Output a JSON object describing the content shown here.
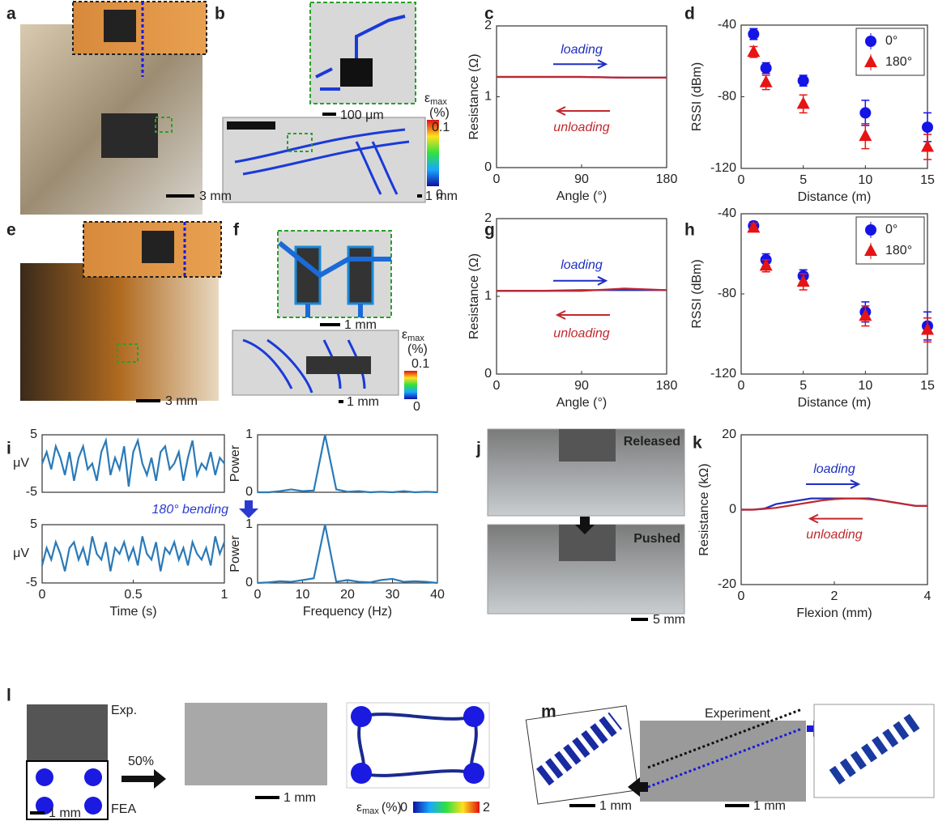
{
  "chart_data": [
    {
      "type": "line",
      "xlabel": "Angle (°)",
      "ylabel": "Resistance (Ω)",
      "xlim": [
        0,
        180
      ],
      "xticks": [
        0,
        90,
        180
      ],
      "ylim": [
        0,
        2
      ],
      "yticks": [
        0,
        1,
        2
      ],
      "series": [
        {
          "name": "loading",
          "color": "#1f2fbf",
          "x": [
            0,
            45,
            90,
            135,
            180
          ],
          "values": [
            1.28,
            1.28,
            1.28,
            1.27,
            1.27
          ]
        },
        {
          "name": "unloading",
          "color": "#c0282d",
          "x": [
            0,
            45,
            90,
            135,
            180
          ],
          "values": [
            1.28,
            1.28,
            1.28,
            1.27,
            1.27
          ]
        }
      ]
    },
    {
      "type": "scatter",
      "xlabel": "Distance (m)",
      "ylabel": "RSSI (dBm)",
      "xlim": [
        0,
        15
      ],
      "xticks": [
        0,
        5,
        10,
        15
      ],
      "ylim": [
        -120,
        -40
      ],
      "yticks": [
        -120,
        -80,
        -40
      ],
      "legend": "upper right",
      "series": [
        {
          "name": "0°",
          "color": "#1414e6",
          "marker": "circle",
          "x": [
            1,
            2,
            5,
            10,
            15
          ],
          "values": [
            -45,
            -64,
            -71,
            -89,
            -97
          ],
          "errors": [
            3,
            3,
            3,
            7,
            8
          ]
        },
        {
          "name": "180°",
          "color": "#e61414",
          "marker": "triangle",
          "x": [
            1,
            2,
            5,
            10,
            15
          ],
          "values": [
            -55,
            -72,
            -84,
            -102,
            -108
          ],
          "errors": [
            3,
            4,
            5,
            7,
            7
          ]
        }
      ]
    },
    {
      "type": "line",
      "xlabel": "Angle (°)",
      "ylabel": "Resistance (Ω)",
      "xlim": [
        0,
        180
      ],
      "xticks": [
        0,
        90,
        180
      ],
      "ylim": [
        0,
        2
      ],
      "yticks": [
        0,
        1,
        2
      ],
      "series": [
        {
          "name": "loading",
          "color": "#1f2fbf",
          "x": [
            0,
            45,
            90,
            135,
            180
          ],
          "values": [
            1.07,
            1.07,
            1.08,
            1.08,
            1.08
          ]
        },
        {
          "name": "unloading",
          "color": "#c0282d",
          "x": [
            0,
            45,
            90,
            135,
            180
          ],
          "values": [
            1.07,
            1.07,
            1.07,
            1.1,
            1.08
          ]
        }
      ]
    },
    {
      "type": "scatter",
      "xlabel": "Distance (m)",
      "ylabel": "RSSI (dBm)",
      "xlim": [
        0,
        15
      ],
      "xticks": [
        0,
        5,
        10,
        15
      ],
      "ylim": [
        -120,
        -40
      ],
      "yticks": [
        -120,
        -80,
        -40
      ],
      "legend": "upper right",
      "series": [
        {
          "name": "0°",
          "color": "#1414e6",
          "marker": "circle",
          "x": [
            1,
            2,
            5,
            10,
            15
          ],
          "values": [
            -46,
            -63,
            -71,
            -89,
            -96
          ],
          "errors": [
            2,
            3,
            3,
            5,
            7
          ]
        },
        {
          "name": "180°",
          "color": "#e61414",
          "marker": "triangle",
          "x": [
            1,
            2,
            5,
            10,
            15
          ],
          "values": [
            -47,
            -66,
            -74,
            -91,
            -98
          ],
          "errors": [
            2,
            3,
            4,
            5,
            6
          ]
        }
      ]
    },
    {
      "type": "line",
      "ylabel": "μV",
      "xlim": [
        0,
        1
      ],
      "ylim": [
        -5,
        5
      ],
      "yticks": [
        -5,
        5
      ],
      "color": "#2a7ab8",
      "x": [
        0,
        0.025,
        0.05,
        0.075,
        0.1,
        0.125,
        0.15,
        0.175,
        0.2,
        0.225,
        0.25,
        0.275,
        0.3,
        0.325,
        0.35,
        0.375,
        0.4,
        0.425,
        0.45,
        0.475,
        0.5,
        0.525,
        0.55,
        0.575,
        0.6,
        0.625,
        0.65,
        0.675,
        0.7,
        0.725,
        0.75,
        0.775,
        0.8,
        0.825,
        0.85,
        0.875,
        0.9,
        0.925,
        0.95,
        0.975,
        1
      ],
      "values": [
        0,
        2,
        -1,
        3,
        1,
        -2,
        2,
        -3,
        1,
        3,
        -1,
        0,
        -3,
        2,
        4,
        -2,
        1,
        -1,
        3,
        -4,
        2,
        4,
        0,
        -2,
        1,
        -3,
        2,
        3,
        -1,
        0,
        2,
        -3,
        1,
        4,
        -2,
        0,
        -1,
        2,
        -2,
        1,
        0
      ]
    },
    {
      "type": "line",
      "ylabel": "Power",
      "xlim": [
        0,
        40
      ],
      "ylim": [
        0,
        1
      ],
      "yticks": [
        0,
        1
      ],
      "color": "#2a7ab8",
      "x": [
        0,
        2.5,
        5,
        7.5,
        10,
        12.5,
        15,
        17.5,
        20,
        22.5,
        25,
        27.5,
        30,
        32.5,
        35,
        37.5,
        40
      ],
      "values": [
        0,
        0,
        0.02,
        0.05,
        0.02,
        0.03,
        1,
        0.05,
        0.01,
        0.02,
        0,
        0.01,
        0,
        0.02,
        0,
        0.01,
        0
      ]
    },
    {
      "type": "line",
      "xlabel": "Time (s)",
      "ylabel": "μV",
      "xlim": [
        0,
        1
      ],
      "xticks": [
        0,
        0.5,
        1
      ],
      "ylim": [
        -5,
        5
      ],
      "yticks": [
        -5,
        5
      ],
      "color": "#2a7ab8",
      "x": [
        0,
        0.025,
        0.05,
        0.075,
        0.1,
        0.125,
        0.15,
        0.175,
        0.2,
        0.225,
        0.25,
        0.275,
        0.3,
        0.325,
        0.35,
        0.375,
        0.4,
        0.425,
        0.45,
        0.475,
        0.5,
        0.525,
        0.55,
        0.575,
        0.6,
        0.625,
        0.65,
        0.675,
        0.7,
        0.725,
        0.75,
        0.775,
        0.8,
        0.825,
        0.85,
        0.875,
        0.9,
        0.925,
        0.95,
        0.975,
        1
      ],
      "values": [
        -2,
        1,
        -1,
        2,
        0,
        -3,
        1,
        2,
        -1,
        1,
        -2,
        3,
        0,
        -1,
        2,
        -3,
        1,
        0,
        2,
        -1,
        1,
        -2,
        3,
        0,
        -1,
        2,
        -3,
        1,
        0,
        2,
        -1,
        1,
        -2,
        2,
        0,
        -1,
        1,
        -2,
        3,
        0,
        2
      ]
    },
    {
      "type": "line",
      "xlabel": "Frequency (Hz)",
      "ylabel": "Power",
      "xlim": [
        0,
        40
      ],
      "xticks": [
        0,
        10,
        20,
        30,
        40
      ],
      "ylim": [
        0,
        1
      ],
      "yticks": [
        0,
        1
      ],
      "color": "#2a7ab8",
      "x": [
        0,
        2.5,
        5,
        7.5,
        10,
        12.5,
        15,
        17.5,
        20,
        22.5,
        25,
        27.5,
        30,
        32.5,
        35,
        37.5,
        40
      ],
      "values": [
        0,
        0.01,
        0.03,
        0.02,
        0.05,
        0.08,
        1,
        0.02,
        0.05,
        0.02,
        0.01,
        0.05,
        0.07,
        0.02,
        0.03,
        0.02,
        0
      ]
    },
    {
      "type": "line",
      "xlabel": "Flexion (mm)",
      "ylabel": "Resistance (kΩ)",
      "xlim": [
        0,
        4
      ],
      "xticks": [
        0,
        2,
        4
      ],
      "ylim": [
        -20,
        20
      ],
      "yticks": [
        -20,
        0,
        20
      ],
      "series": [
        {
          "name": "loading",
          "color": "#1f2fbf",
          "x": [
            0,
            0.25,
            0.5,
            0.75,
            1,
            1.25,
            1.5,
            1.75,
            2,
            2.25,
            2.5,
            2.75,
            3,
            3.25,
            3.5,
            3.75,
            4
          ],
          "values": [
            0,
            0,
            0.3,
            1.5,
            2,
            2.5,
            3,
            3,
            3,
            3,
            3,
            3,
            2.5,
            2,
            1.5,
            1,
            1
          ]
        },
        {
          "name": "unloading",
          "color": "#c0282d",
          "x": [
            0,
            0.25,
            0.5,
            0.75,
            1,
            1.25,
            1.5,
            1.75,
            2,
            2.25,
            2.5,
            2.75,
            3,
            3.25,
            3.5,
            3.75,
            4
          ],
          "values": [
            0,
            0,
            0.2,
            0.5,
            1,
            1.5,
            2,
            2.5,
            2.8,
            3,
            3,
            2.8,
            2.5,
            2,
            1.5,
            1,
            1
          ]
        }
      ]
    }
  ],
  "figure": {
    "panels": [
      "a",
      "b",
      "c",
      "d",
      "e",
      "f",
      "g",
      "h",
      "i",
      "j",
      "k",
      "l",
      "m"
    ],
    "scale_bars": [
      "3 mm",
      "100 μm",
      "1 mm",
      "3 mm",
      "1 mm",
      "1 mm",
      "5 mm",
      "1 mm",
      "1 mm",
      "1 mm",
      "1 mm"
    ],
    "strain_symbol": "ε",
    "strain_sub": "max",
    "strain_unit": "(%)",
    "colorbar_b": [
      "0.1",
      "0"
    ],
    "colorbar_f": [
      "0.1",
      "0"
    ],
    "colorbar_l": [
      "0",
      "2"
    ],
    "bending": "180° bending",
    "released": "Released",
    "pushed": "Pushed",
    "exp": "Exp.",
    "fea": "FEA",
    "stretch": "50%",
    "experiment": "Experiment"
  }
}
